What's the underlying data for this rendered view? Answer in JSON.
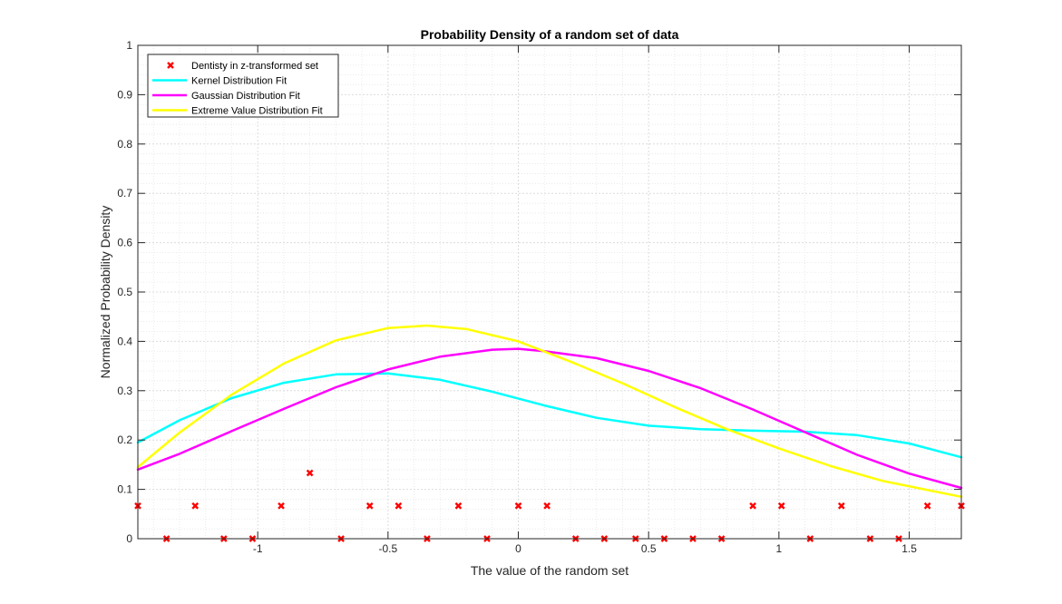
{
  "chart_data": {
    "type": "line",
    "title": "Probability Density of a random set of data",
    "xlabel": "The value of the random set",
    "ylabel": "Normalized Probability Density",
    "xlim": [
      -1.46,
      1.7
    ],
    "ylim": [
      0,
      1
    ],
    "xticks": [
      -1,
      -0.5,
      0,
      0.5,
      1,
      1.5
    ],
    "xtick_labels": [
      "-1",
      "-0.5",
      "0",
      "0.5",
      "1",
      "1.5"
    ],
    "yticks": [
      0,
      0.1,
      0.2,
      0.3,
      0.4,
      0.5,
      0.6,
      0.7,
      0.8,
      0.9,
      1
    ],
    "ytick_labels": [
      "0",
      "0.1",
      "0.2",
      "0.3",
      "0.4",
      "0.5",
      "0.6",
      "0.7",
      "0.8",
      "0.9",
      "1"
    ],
    "grid": true,
    "minor_grid": true,
    "legend_position": "top-left",
    "series": [
      {
        "name": "Dentisty in z-transformed set",
        "kind": "scatter",
        "marker": "x",
        "color": "#ff0000",
        "points": [
          [
            -1.46,
            0.0667
          ],
          [
            -1.35,
            0
          ],
          [
            -1.24,
            0.0667
          ],
          [
            -1.13,
            0
          ],
          [
            -1.02,
            0
          ],
          [
            -0.91,
            0.0667
          ],
          [
            -0.8,
            0.1333
          ],
          [
            -0.68,
            0
          ],
          [
            -0.57,
            0.0667
          ],
          [
            -0.46,
            0.0667
          ],
          [
            -0.35,
            0
          ],
          [
            -0.23,
            0.0667
          ],
          [
            -0.12,
            0
          ],
          [
            0.0,
            0.0667
          ],
          [
            0.11,
            0.0667
          ],
          [
            0.22,
            0
          ],
          [
            0.33,
            0
          ],
          [
            0.45,
            0
          ],
          [
            0.56,
            0
          ],
          [
            0.67,
            0
          ],
          [
            0.78,
            0
          ],
          [
            0.9,
            0.0667
          ],
          [
            1.01,
            0.0667
          ],
          [
            1.12,
            0
          ],
          [
            1.24,
            0.0667
          ],
          [
            1.35,
            0
          ],
          [
            1.46,
            0
          ],
          [
            1.57,
            0.0667
          ],
          [
            1.7,
            0.0667
          ]
        ]
      },
      {
        "name": "Kernel Distribution Fit",
        "kind": "line",
        "color": "#00ffff",
        "x": [
          -1.46,
          -1.3,
          -1.1,
          -0.9,
          -0.7,
          -0.5,
          -0.3,
          -0.1,
          0.1,
          0.3,
          0.5,
          0.7,
          0.9,
          1.1,
          1.3,
          1.5,
          1.7
        ],
        "y": [
          0.195,
          0.24,
          0.285,
          0.316,
          0.333,
          0.335,
          0.322,
          0.298,
          0.27,
          0.245,
          0.229,
          0.222,
          0.219,
          0.217,
          0.21,
          0.193,
          0.165
        ]
      },
      {
        "name": "Gaussian Distribution Fit",
        "kind": "line",
        "color": "#ff00ff",
        "x": [
          -1.46,
          -1.3,
          -1.1,
          -0.9,
          -0.7,
          -0.5,
          -0.3,
          -0.1,
          0.0,
          0.1,
          0.3,
          0.5,
          0.7,
          0.9,
          1.1,
          1.3,
          1.5,
          1.7
        ],
        "y": [
          0.14,
          0.172,
          0.218,
          0.263,
          0.307,
          0.343,
          0.369,
          0.383,
          0.385,
          0.38,
          0.366,
          0.34,
          0.305,
          0.262,
          0.216,
          0.17,
          0.132,
          0.103
        ]
      },
      {
        "name": "Extreme Value Distribution Fit",
        "kind": "line",
        "color": "#ffff00",
        "x": [
          -1.46,
          -1.3,
          -1.1,
          -0.9,
          -0.7,
          -0.5,
          -0.35,
          -0.2,
          0.0,
          0.2,
          0.4,
          0.6,
          0.8,
          1.0,
          1.2,
          1.4,
          1.7
        ],
        "y": [
          0.145,
          0.215,
          0.292,
          0.355,
          0.402,
          0.427,
          0.432,
          0.425,
          0.4,
          0.359,
          0.315,
          0.267,
          0.222,
          0.183,
          0.147,
          0.117,
          0.085
        ]
      }
    ]
  }
}
